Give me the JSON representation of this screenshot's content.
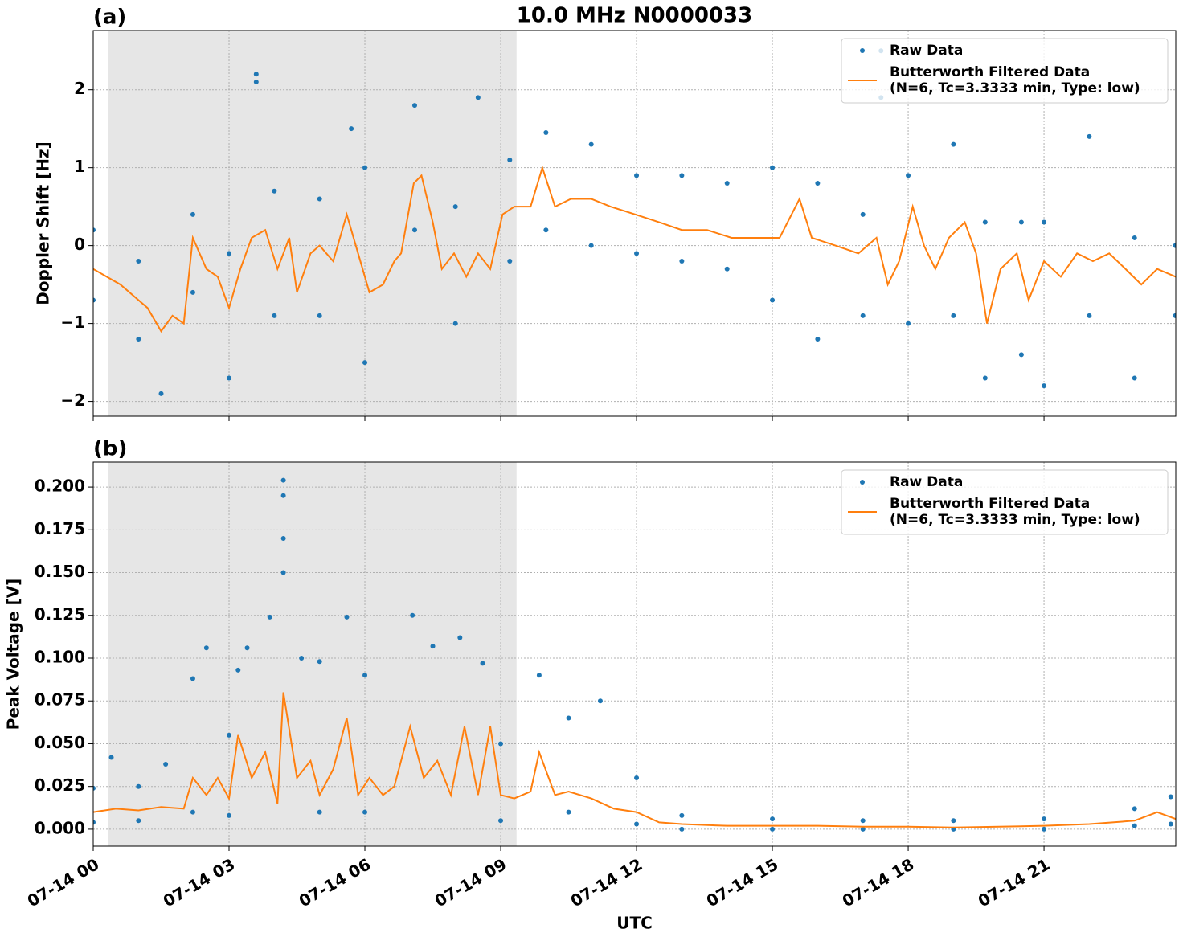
{
  "chart_data": [
    {
      "type": "line",
      "title": "10.0 MHz N0000033",
      "panel_label": "(a)",
      "ylabel": "Doppler Shift [Hz]",
      "xlim": [
        0,
        23.91
      ],
      "ylim": [
        -2.19,
        2.76
      ],
      "xticks": [
        0,
        3,
        6,
        9,
        12,
        15,
        18,
        21
      ],
      "yticks": [
        {
          "value": -2,
          "label": "−2"
        },
        {
          "value": -1,
          "label": "−1"
        },
        0,
        1,
        2
      ],
      "grid": true,
      "legend": "upper right",
      "shaded_span": [
        0.33,
        9.35
      ],
      "shade_color": "#e6e6e6",
      "series": [
        {
          "name": "Raw Data",
          "type": "scatter",
          "color": "#1f77b4",
          "x": [
            0,
            0,
            1,
            1,
            1.5,
            2.2,
            2.2,
            3,
            3,
            3.6,
            3.6,
            4,
            4,
            5,
            5,
            5.7,
            6,
            6,
            7.1,
            7.1,
            8,
            8,
            8.5,
            9.2,
            9.2,
            10,
            10,
            11,
            11,
            12,
            12,
            13,
            13,
            14,
            14,
            15,
            15,
            16,
            16,
            17,
            17,
            17.4,
            17.4,
            18,
            18,
            19,
            19,
            19.7,
            19.7,
            20.5,
            20.5,
            21,
            21,
            22,
            22,
            23,
            23,
            23.9,
            23.9
          ],
          "values": [
            0.2,
            -0.7,
            -0.2,
            -1.2,
            -1.9,
            0.4,
            -0.6,
            -0.1,
            -1.7,
            2.2,
            2.1,
            0.7,
            -0.9,
            0.6,
            -0.9,
            1.5,
            1.0,
            -1.5,
            1.8,
            0.2,
            0.5,
            -1.0,
            1.9,
            1.1,
            -0.2,
            1.45,
            0.2,
            1.3,
            0.0,
            0.9,
            -0.1,
            0.9,
            -0.2,
            0.8,
            -0.3,
            1.0,
            -0.7,
            0.8,
            -1.2,
            0.4,
            -0.9,
            2.5,
            1.9,
            0.9,
            -1.0,
            1.3,
            -0.9,
            0.3,
            -1.7,
            0.3,
            -1.4,
            0.3,
            -1.8,
            1.4,
            -0.9,
            0.1,
            -1.7,
            0.0,
            -0.9
          ]
        },
        {
          "name": "Butterworth Filtered Data\n(N=6, Tc=3.3333 min, Type: low)",
          "type": "line",
          "color": "#ff7f0e",
          "x": [
            0,
            0.6,
            1.0,
            1.2,
            1.5,
            1.75,
            2.0,
            2.2,
            2.5,
            2.75,
            3,
            3.25,
            3.5,
            3.8,
            4.07,
            4.33,
            4.5,
            4.8,
            5.0,
            5.3,
            5.6,
            5.85,
            6.1,
            6.4,
            6.65,
            6.8,
            7.08,
            7.25,
            7.5,
            7.7,
            7.97,
            8.24,
            8.5,
            8.77,
            9.04,
            9.3,
            9.66,
            9.92,
            10.2,
            10.55,
            11.0,
            11.43,
            11.97,
            12.5,
            13.0,
            13.56,
            14.1,
            14.6,
            15.16,
            15.6,
            15.87,
            16.4,
            16.9,
            17.3,
            17.55,
            17.8,
            18.1,
            18.35,
            18.6,
            18.9,
            19.25,
            19.5,
            19.74,
            20.04,
            20.4,
            20.66,
            21.0,
            21.37,
            21.73,
            22.08,
            22.44,
            22.8,
            23.15,
            23.5,
            23.91
          ],
          "values": [
            -0.3,
            -0.5,
            -0.7,
            -0.8,
            -1.1,
            -0.9,
            -1.0,
            0.1,
            -0.3,
            -0.4,
            -0.8,
            -0.3,
            0.1,
            0.2,
            -0.3,
            0.1,
            -0.6,
            -0.1,
            0.0,
            -0.2,
            0.4,
            -0.1,
            -0.6,
            -0.5,
            -0.2,
            -0.1,
            0.8,
            0.9,
            0.3,
            -0.3,
            -0.1,
            -0.4,
            -0.1,
            -0.3,
            0.4,
            0.5,
            0.5,
            1.0,
            0.5,
            0.6,
            0.6,
            0.5,
            0.4,
            0.3,
            0.2,
            0.2,
            0.1,
            0.1,
            0.1,
            0.6,
            0.1,
            0.0,
            -0.1,
            0.1,
            -0.5,
            -0.2,
            0.5,
            0.0,
            -0.3,
            0.1,
            0.3,
            -0.1,
            -1.0,
            -0.3,
            -0.1,
            -0.7,
            -0.2,
            -0.4,
            -0.1,
            -0.2,
            -0.1,
            -0.3,
            -0.5,
            -0.3,
            -0.4
          ]
        }
      ]
    },
    {
      "type": "line",
      "panel_label": "(b)",
      "ylabel": "Peak Voltage [V]",
      "xlabel": "UTC",
      "xlim": [
        0,
        23.91
      ],
      "ylim": [
        -0.0099,
        0.2146
      ],
      "xticks": [
        {
          "value": 0,
          "label": "07-14 00"
        },
        {
          "value": 3,
          "label": "07-14 03"
        },
        {
          "value": 6,
          "label": "07-14 06"
        },
        {
          "value": 9,
          "label": "07-14 09"
        },
        {
          "value": 12,
          "label": "07-14 12"
        },
        {
          "value": 15,
          "label": "07-14 15"
        },
        {
          "value": 18,
          "label": "07-14 18"
        },
        {
          "value": 21,
          "label": "07-14 21"
        }
      ],
      "yticks": [
        {
          "value": 0,
          "label": "0.000"
        },
        {
          "value": 0.025,
          "label": "0.025"
        },
        {
          "value": 0.05,
          "label": "0.050"
        },
        {
          "value": 0.075,
          "label": "0.075"
        },
        {
          "value": 0.1,
          "label": "0.100"
        },
        {
          "value": 0.125,
          "label": "0.125"
        },
        {
          "value": 0.15,
          "label": "0.150"
        },
        {
          "value": 0.175,
          "label": "0.175"
        },
        {
          "value": 0.2,
          "label": "0.200"
        }
      ],
      "grid": true,
      "legend": "upper right",
      "shaded_span": [
        0.33,
        9.35
      ],
      "shade_color": "#e6e6e6",
      "series": [
        {
          "name": "Raw Data",
          "type": "scatter",
          "color": "#1f77b4",
          "x": [
            0,
            0,
            0.4,
            1,
            1,
            1.6,
            2.2,
            2.2,
            2.5,
            3,
            3,
            3.2,
            3.4,
            3.9,
            4.2,
            4.2,
            4.2,
            4.2,
            4.6,
            5,
            5,
            5.6,
            6,
            6,
            7.05,
            7.5,
            8.1,
            8.6,
            9,
            9,
            9.85,
            10.5,
            10.5,
            11.2,
            12,
            12,
            13,
            13,
            15,
            15,
            17,
            17,
            19,
            19,
            21,
            21,
            23,
            23,
            23.8,
            23.8
          ],
          "values": [
            0.024,
            0.004,
            0.042,
            0.025,
            0.005,
            0.038,
            0.088,
            0.01,
            0.106,
            0.055,
            0.008,
            0.093,
            0.106,
            0.124,
            0.204,
            0.195,
            0.17,
            0.15,
            0.1,
            0.098,
            0.01,
            0.124,
            0.09,
            0.01,
            0.125,
            0.107,
            0.112,
            0.097,
            0.05,
            0.005,
            0.09,
            0.065,
            0.01,
            0.075,
            0.03,
            0.003,
            0.008,
            0.0,
            0.006,
            0.0,
            0.005,
            0.0,
            0.005,
            0.0,
            0.006,
            0.0,
            0.012,
            0.002,
            0.019,
            0.003
          ]
        },
        {
          "name": "Butterworth Filtered Data\n(N=6, Tc=3.3333 min, Type: low)",
          "type": "line",
          "color": "#ff7f0e",
          "x": [
            0,
            0.5,
            1,
            1.5,
            2,
            2.2,
            2.5,
            2.75,
            3,
            3.2,
            3.5,
            3.8,
            4.07,
            4.2,
            4.5,
            4.8,
            5,
            5.3,
            5.6,
            5.85,
            6.1,
            6.4,
            6.65,
            7,
            7.3,
            7.6,
            7.9,
            8.2,
            8.5,
            8.77,
            9.0,
            9.3,
            9.66,
            9.85,
            10.2,
            10.5,
            11,
            11.5,
            12,
            12.5,
            13,
            14,
            15,
            16,
            17,
            18,
            19,
            20,
            21,
            22,
            23,
            23.5,
            23.91
          ],
          "values": [
            0.01,
            0.012,
            0.011,
            0.013,
            0.012,
            0.03,
            0.02,
            0.03,
            0.018,
            0.055,
            0.03,
            0.045,
            0.015,
            0.08,
            0.03,
            0.04,
            0.02,
            0.035,
            0.065,
            0.02,
            0.03,
            0.02,
            0.025,
            0.06,
            0.03,
            0.04,
            0.02,
            0.06,
            0.02,
            0.06,
            0.02,
            0.018,
            0.022,
            0.045,
            0.02,
            0.022,
            0.018,
            0.012,
            0.01,
            0.004,
            0.003,
            0.002,
            0.002,
            0.002,
            0.0015,
            0.0015,
            0.001,
            0.0015,
            0.002,
            0.003,
            0.005,
            0.01,
            0.006
          ]
        }
      ]
    }
  ]
}
